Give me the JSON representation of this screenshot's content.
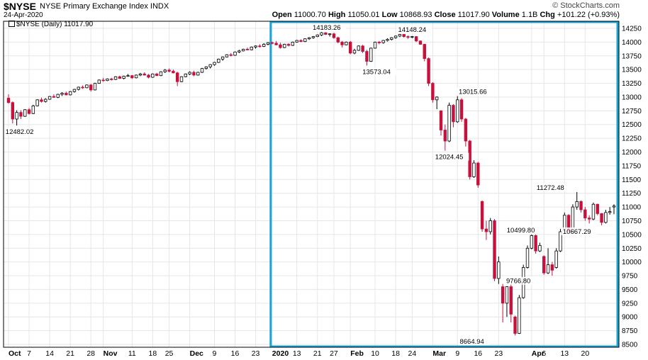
{
  "header": {
    "symbol": "$NYSE",
    "name": "NYSE Primary Exchange Index",
    "exchange": "INDX",
    "date": "24-Apr-2020",
    "watermark": "© StockCharts.com",
    "open_label": "Open",
    "open": "11000.70",
    "high_label": "High",
    "high": "11050.01",
    "low_label": "Low",
    "low": "10868.93",
    "close_label": "Close",
    "close": "11017.90",
    "volume_label": "Volume",
    "volume": "1.1B",
    "chg_label": "Chg",
    "chg": "+101.22 (+0.93%)",
    "legend": "$NYSE (Daily) 11017.90"
  },
  "colors": {
    "up": "#ffffff",
    "down": "#c8103c",
    "up_volume_bar": "#000000",
    "grid": "#e6e6e6",
    "highlight_box": "#1aa3d6",
    "axis": "#000000"
  },
  "chart_data": {
    "type": "candlestick",
    "ylim": [
      8500,
      14250
    ],
    "y_ticks": [
      8500,
      8750,
      9000,
      9250,
      9500,
      9750,
      10000,
      10250,
      10500,
      10750,
      11000,
      11250,
      11500,
      11750,
      12000,
      12250,
      12500,
      12750,
      13000,
      13250,
      13500,
      13750,
      14000,
      14250
    ],
    "x_ticks": [
      {
        "label": "Oct",
        "bold": true
      },
      {
        "label": "7"
      },
      {
        "label": "14"
      },
      {
        "label": "21"
      },
      {
        "label": "28"
      },
      {
        "label": "Nov",
        "bold": true
      },
      {
        "label": "11"
      },
      {
        "label": "18"
      },
      {
        "label": "25"
      },
      {
        "label": "Dec",
        "bold": true
      },
      {
        "label": "9"
      },
      {
        "label": "16"
      },
      {
        "label": "23"
      },
      {
        "label": "2020",
        "bold": true
      },
      {
        "label": "13"
      },
      {
        "label": "21"
      },
      {
        "label": "27"
      },
      {
        "label": "Feb",
        "bold": true
      },
      {
        "label": "10"
      },
      {
        "label": "18"
      },
      {
        "label": "24"
      },
      {
        "label": "Mar",
        "bold": true
      },
      {
        "label": "9"
      },
      {
        "label": "16"
      },
      {
        "label": "23"
      },
      {
        "label": "Apr",
        "bold": true
      },
      {
        "label": "6"
      },
      {
        "label": "13"
      },
      {
        "label": "20"
      }
    ],
    "annotations": [
      {
        "text": "12482.02",
        "value": 12482.02
      },
      {
        "text": "14183.26",
        "value": 14183.26
      },
      {
        "text": "13573.04",
        "value": 13573.04
      },
      {
        "text": "14148.24",
        "value": 14148.24
      },
      {
        "text": "13015.66",
        "value": 13015.66
      },
      {
        "text": "12024.45",
        "value": 12024.45
      },
      {
        "text": "11272.48",
        "value": 11272.48
      },
      {
        "text": "10499.80",
        "value": 10499.8
      },
      {
        "text": "9766.80",
        "value": 9766.8
      },
      {
        "text": "8664.94",
        "value": 8664.94
      },
      {
        "text": "10667.29",
        "value": 10667.29
      }
    ],
    "highlight_range": {
      "from": "2020-01-02",
      "to": "2020-04-24"
    },
    "candles": [
      [
        12980,
        13050,
        12880,
        12900
      ],
      [
        12900,
        12920,
        12520,
        12600
      ],
      [
        12600,
        12760,
        12482,
        12720
      ],
      [
        12720,
        12760,
        12600,
        12650
      ],
      [
        12650,
        12780,
        12640,
        12770
      ],
      [
        12770,
        12800,
        12680,
        12700
      ],
      [
        12700,
        12860,
        12690,
        12840
      ],
      [
        12840,
        12960,
        12830,
        12950
      ],
      [
        12950,
        12990,
        12900,
        12920
      ],
      [
        12920,
        12980,
        12900,
        12960
      ],
      [
        12960,
        13020,
        12950,
        13010
      ],
      [
        13010,
        13050,
        12990,
        12995
      ],
      [
        12995,
        13060,
        12980,
        13050
      ],
      [
        13050,
        13090,
        13020,
        13070
      ],
      [
        13070,
        13100,
        13030,
        13040
      ],
      [
        13040,
        13110,
        13030,
        13100
      ],
      [
        13100,
        13150,
        13080,
        13140
      ],
      [
        13140,
        13190,
        13120,
        13180
      ],
      [
        13180,
        13210,
        13150,
        13170
      ],
      [
        13170,
        13230,
        13160,
        13220
      ],
      [
        13220,
        13240,
        13100,
        13130
      ],
      [
        13130,
        13260,
        13120,
        13250
      ],
      [
        13250,
        13320,
        13240,
        13310
      ],
      [
        13310,
        13350,
        13280,
        13300
      ],
      [
        13300,
        13340,
        13290,
        13330
      ],
      [
        13330,
        13350,
        13300,
        13320
      ],
      [
        13320,
        13380,
        13310,
        13370
      ],
      [
        13370,
        13390,
        13330,
        13340
      ],
      [
        13340,
        13390,
        13320,
        13380
      ],
      [
        13380,
        13420,
        13370,
        13390
      ],
      [
        13390,
        13400,
        13330,
        13350
      ],
      [
        13350,
        13410,
        13340,
        13400
      ],
      [
        13400,
        13440,
        13380,
        13420
      ],
      [
        13420,
        13450,
        13390,
        13400
      ],
      [
        13400,
        13420,
        13340,
        13360
      ],
      [
        13360,
        13430,
        13350,
        13420
      ],
      [
        13420,
        13440,
        13380,
        13390
      ],
      [
        13390,
        13470,
        13380,
        13460
      ],
      [
        13460,
        13510,
        13440,
        13490
      ],
      [
        13490,
        13520,
        13450,
        13470
      ],
      [
        13470,
        13500,
        13430,
        13440
      ],
      [
        13440,
        13460,
        13200,
        13280
      ],
      [
        13280,
        13380,
        13270,
        13370
      ],
      [
        13370,
        13430,
        13360,
        13420
      ],
      [
        13420,
        13470,
        13400,
        13450
      ],
      [
        13450,
        13480,
        13380,
        13400
      ],
      [
        13400,
        13460,
        13390,
        13450
      ],
      [
        13450,
        13530,
        13440,
        13520
      ],
      [
        13520,
        13560,
        13500,
        13550
      ],
      [
        13550,
        13600,
        13520,
        13590
      ],
      [
        13590,
        13640,
        13570,
        13630
      ],
      [
        13630,
        13700,
        13620,
        13690
      ],
      [
        13690,
        13740,
        13660,
        13730
      ],
      [
        13730,
        13780,
        13720,
        13770
      ],
      [
        13770,
        13800,
        13740,
        13760
      ],
      [
        13760,
        13830,
        13750,
        13820
      ],
      [
        13820,
        13860,
        13800,
        13840
      ],
      [
        13840,
        13880,
        13830,
        13870
      ],
      [
        13870,
        13900,
        13850,
        13860
      ],
      [
        13860,
        13920,
        13850,
        13910
      ],
      [
        13910,
        13940,
        13880,
        13930
      ],
      [
        13930,
        13960,
        13900,
        13920
      ],
      [
        13920,
        13980,
        13910,
        13960
      ],
      [
        13960,
        14000,
        13940,
        13990
      ],
      [
        13990,
        14010,
        13960,
        13980
      ],
      [
        13980,
        14020,
        13940,
        13950
      ],
      [
        13950,
        13990,
        13880,
        13900
      ],
      [
        13900,
        13970,
        13890,
        13960
      ],
      [
        13960,
        13980,
        13920,
        13940
      ],
      [
        13940,
        14010,
        13930,
        14000
      ],
      [
        14000,
        14040,
        13990,
        14030
      ],
      [
        14030,
        14050,
        14000,
        14010
      ],
      [
        14010,
        14070,
        14000,
        14060
      ],
      [
        14060,
        14090,
        14040,
        14080
      ],
      [
        14080,
        14110,
        14060,
        14100
      ],
      [
        14100,
        14140,
        14090,
        14130
      ],
      [
        14130,
        14183,
        14110,
        14170
      ],
      [
        14170,
        14180,
        14130,
        14140
      ],
      [
        14140,
        14160,
        14100,
        14150
      ],
      [
        14150,
        14170,
        14060,
        14080
      ],
      [
        14080,
        14100,
        13980,
        14000
      ],
      [
        14000,
        14020,
        13900,
        13950
      ],
      [
        13950,
        14010,
        13940,
        14000
      ],
      [
        14000,
        14020,
        13780,
        13800
      ],
      [
        13800,
        13880,
        13780,
        13850
      ],
      [
        13850,
        13940,
        13840,
        13930
      ],
      [
        13930,
        13950,
        13800,
        13830
      ],
      [
        13830,
        13860,
        13573,
        13650
      ],
      [
        13650,
        13900,
        13640,
        13890
      ],
      [
        13890,
        14010,
        13880,
        14000
      ],
      [
        14000,
        14020,
        13960,
        13990
      ],
      [
        13990,
        14040,
        13970,
        14030
      ],
      [
        14030,
        14070,
        14010,
        14050
      ],
      [
        14050,
        14090,
        14030,
        14080
      ],
      [
        14080,
        14120,
        14060,
        14110
      ],
      [
        14110,
        14148,
        14090,
        14140
      ],
      [
        14140,
        14145,
        14080,
        14100
      ],
      [
        14100,
        14120,
        14060,
        14090
      ],
      [
        14090,
        14110,
        14070,
        14100
      ],
      [
        14100,
        14110,
        14000,
        14020
      ],
      [
        14020,
        14030,
        13950,
        13960
      ],
      [
        13960,
        13970,
        13650,
        13700
      ],
      [
        13700,
        13720,
        13200,
        13250
      ],
      [
        13250,
        13270,
        12900,
        12950
      ],
      [
        12950,
        13015,
        12780,
        13000
      ],
      [
        12750,
        12760,
        12300,
        12400
      ],
      [
        12400,
        12500,
        12024,
        12200
      ],
      [
        12200,
        12900,
        12180,
        12850
      ],
      [
        12850,
        12870,
        12450,
        12550
      ],
      [
        12550,
        13016,
        12530,
        12950
      ],
      [
        12950,
        12980,
        12550,
        12600
      ],
      [
        12600,
        12620,
        12100,
        12200
      ],
      [
        12200,
        12220,
        11500,
        11550
      ],
      [
        11550,
        11850,
        11530,
        11800
      ],
      [
        11800,
        11820,
        11350,
        11400
      ],
      [
        11100,
        11120,
        10550,
        10600
      ],
      [
        10600,
        10750,
        10400,
        10550
      ],
      [
        10550,
        10800,
        10500,
        10750
      ],
      [
        10750,
        10780,
        9650,
        9700
      ],
      [
        9700,
        10100,
        9600,
        10000
      ],
      [
        9550,
        9600,
        8900,
        9250
      ],
      [
        9250,
        9560,
        9000,
        9550
      ],
      [
        9550,
        9600,
        8900,
        9050
      ],
      [
        9000,
        9020,
        8665,
        8700
      ],
      [
        8700,
        9400,
        8690,
        9350
      ],
      [
        9350,
        9950,
        9330,
        9900
      ],
      [
        9900,
        10300,
        9880,
        10250
      ],
      [
        10250,
        10500,
        10230,
        10480
      ],
      [
        10480,
        10500,
        10150,
        10200
      ],
      [
        10200,
        10350,
        10180,
        10300
      ],
      [
        10100,
        10120,
        9767,
        9800
      ],
      [
        9800,
        10250,
        9780,
        9950
      ],
      [
        9950,
        10000,
        9750,
        9850
      ],
      [
        9900,
        10250,
        9880,
        10200
      ],
      [
        10200,
        10600,
        10180,
        10550
      ],
      [
        10600,
        10900,
        10580,
        10850
      ],
      [
        10850,
        10870,
        10520,
        10550
      ],
      [
        10550,
        11050,
        10530,
        11000
      ],
      [
        11000,
        11272,
        10950,
        11100
      ],
      [
        11100,
        11120,
        10900,
        10950
      ],
      [
        10950,
        11000,
        10750,
        10800
      ],
      [
        10800,
        10850,
        10700,
        10780
      ],
      [
        10780,
        11080,
        10760,
        11050
      ],
      [
        11050,
        11060,
        10850,
        10880
      ],
      [
        10880,
        10890,
        10667,
        10720
      ],
      [
        10720,
        10950,
        10700,
        10900
      ],
      [
        10900,
        11000,
        10860,
        10917
      ],
      [
        11000,
        11050,
        10869,
        11018
      ]
    ]
  }
}
